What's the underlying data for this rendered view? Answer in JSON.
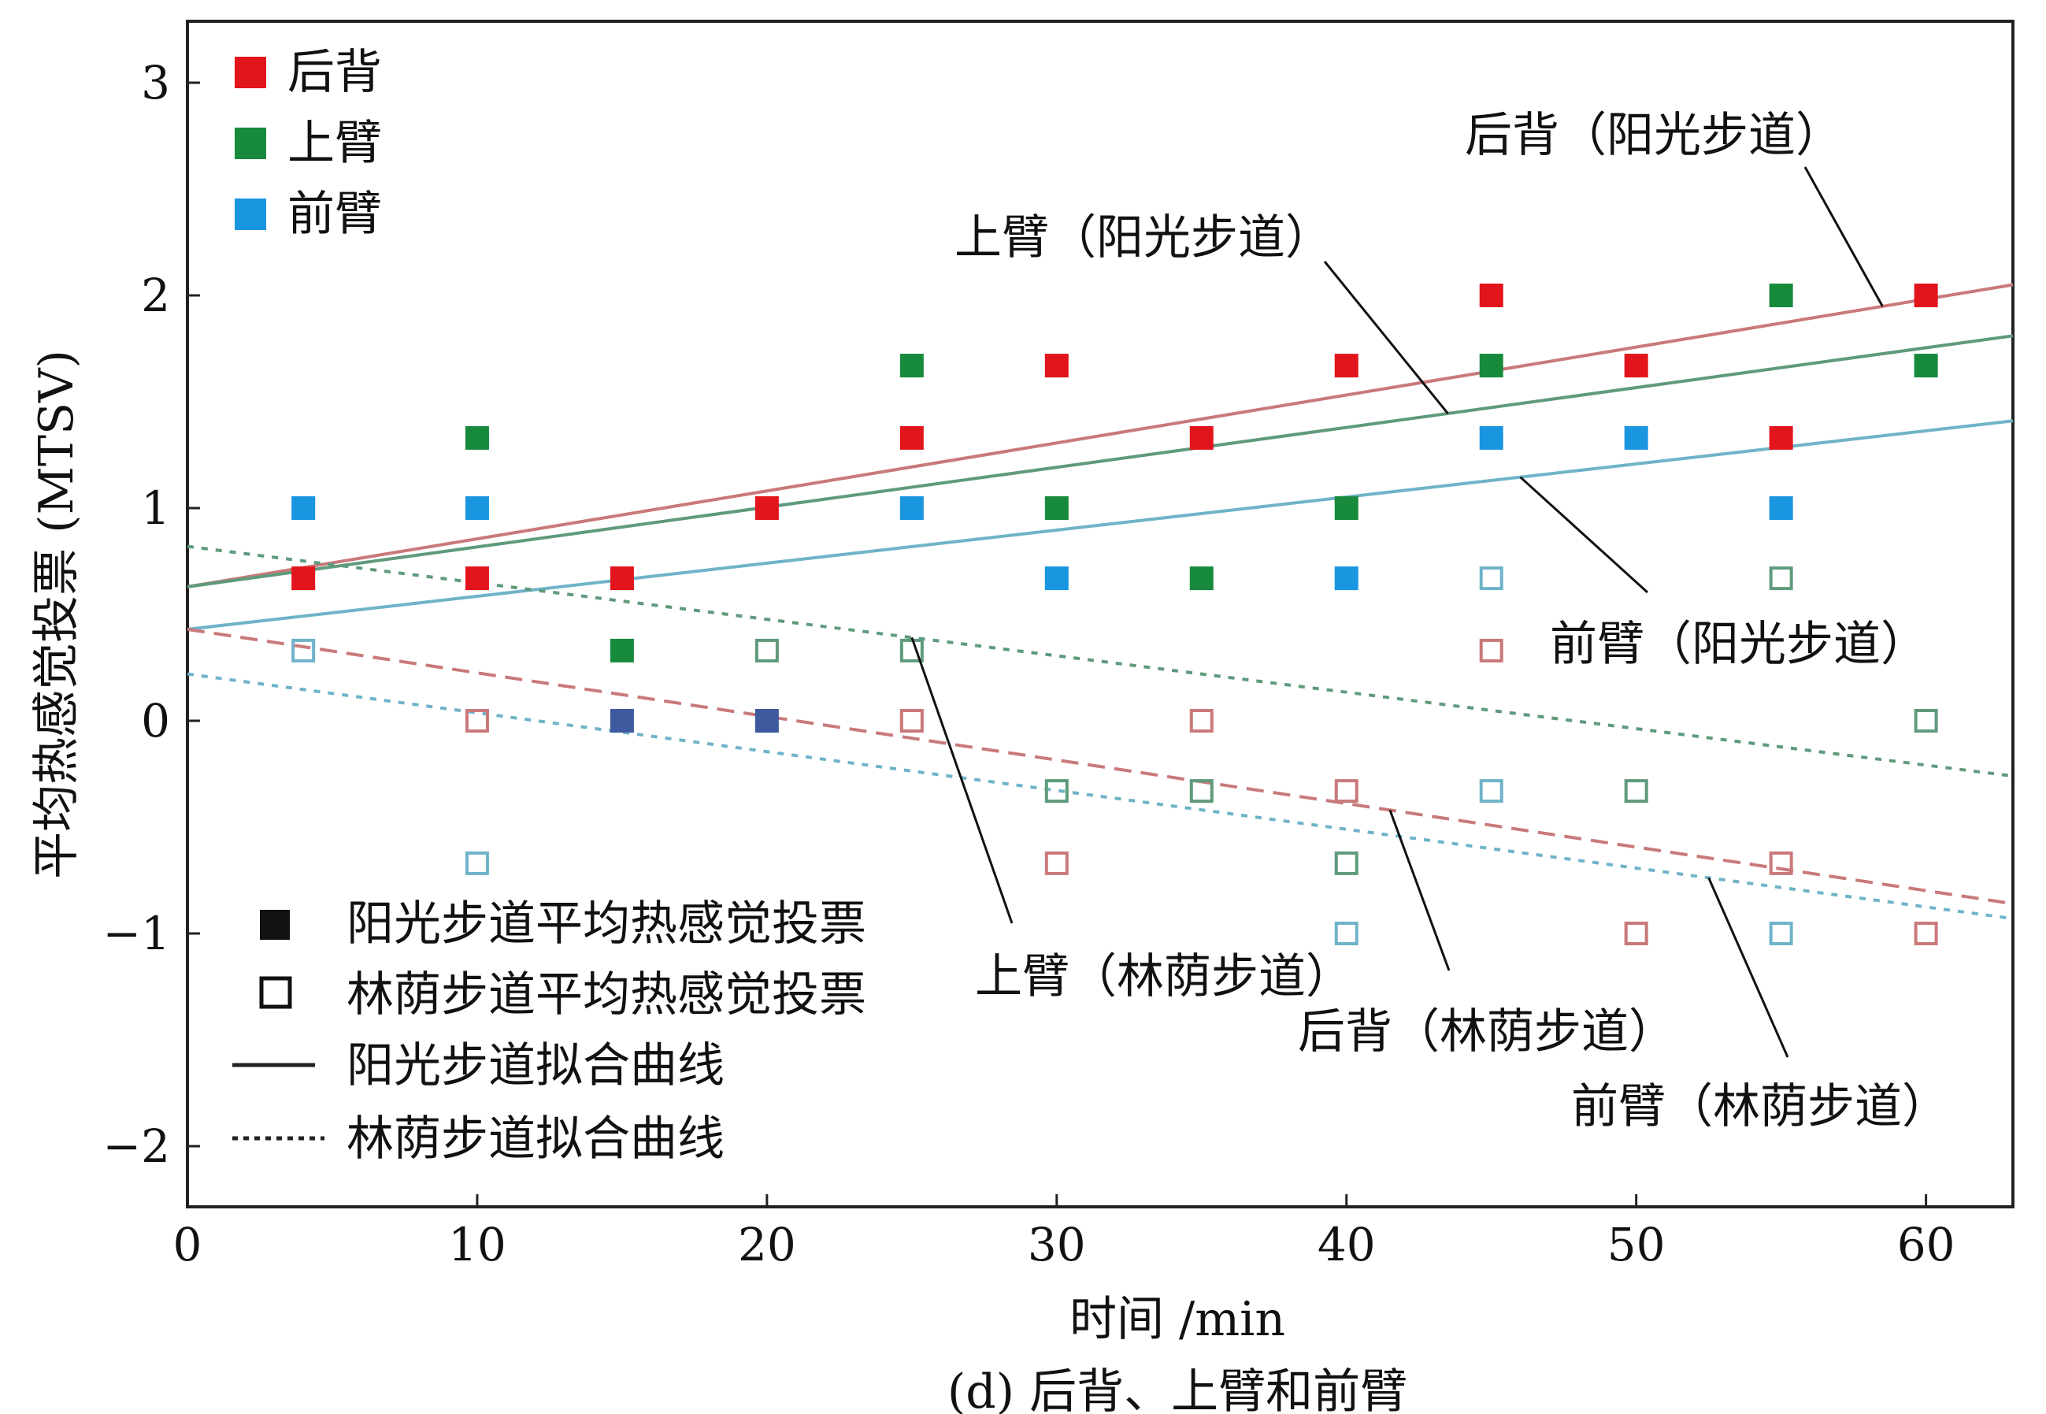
{
  "chart_data": {
    "type": "scatter",
    "xlabel": "时间 /min",
    "ylabel": "平均热感觉投票 (MTSV)",
    "caption": "(d) 后背、上臂和前臂",
    "xlim": [
      0,
      63
    ],
    "ylim": [
      -2.3,
      3.3
    ],
    "xticks": [
      0,
      10,
      20,
      30,
      40,
      50,
      60
    ],
    "yticks": [
      -2,
      -1,
      0,
      1,
      2,
      3
    ],
    "ytick_labels": [
      "−2",
      "−1",
      "0",
      "1",
      "2",
      "3"
    ],
    "grid": false,
    "colors": {
      "back": "#e2141c",
      "upper_arm": "#178a3c",
      "forearm": "#1a95e0",
      "back_fit": "#c9797a",
      "upper_arm_fit": "#5f9a7c",
      "forearm_fit": "#6fb3c8",
      "overlap": "#3d5a9e"
    },
    "legend_parts": {
      "position": "top-left",
      "items": [
        {
          "label": "后背",
          "color": "#e2141c"
        },
        {
          "label": "上臂",
          "color": "#178a3c"
        },
        {
          "label": "前臂",
          "color": "#1a95e0"
        }
      ]
    },
    "legend_types": {
      "position": "bottom-left",
      "items": [
        {
          "label": "阳光步道平均热感觉投票",
          "symbol": "filled-square"
        },
        {
          "label": "林荫步道平均热感觉投票",
          "symbol": "open-square"
        },
        {
          "label": "阳光步道拟合曲线",
          "symbol": "solid-line"
        },
        {
          "label": "林荫步道拟合曲线",
          "symbol": "dotted-line"
        }
      ]
    },
    "series": [
      {
        "part": "back",
        "condition": "sunny",
        "marker": "filled",
        "x": [
          4,
          10,
          15,
          20,
          25,
          30,
          35,
          40,
          45,
          50,
          55,
          60
        ],
        "y": [
          0.67,
          0.67,
          0.67,
          1.0,
          1.33,
          1.67,
          1.33,
          1.67,
          2.0,
          1.67,
          1.33,
          2.0
        ]
      },
      {
        "part": "upper_arm",
        "condition": "sunny",
        "marker": "filled",
        "x": [
          10,
          15,
          25,
          30,
          35,
          40,
          45,
          55,
          60
        ],
        "y": [
          1.33,
          0.33,
          1.67,
          1.0,
          0.67,
          1.0,
          1.67,
          2.0,
          1.67
        ]
      },
      {
        "part": "forearm",
        "condition": "sunny",
        "marker": "filled",
        "x": [
          4,
          10,
          25,
          30,
          40,
          45,
          50,
          55
        ],
        "y": [
          1.0,
          1.0,
          1.0,
          0.67,
          0.67,
          1.33,
          1.33,
          1.0
        ]
      },
      {
        "part": "overlap",
        "condition": "sunny",
        "marker": "filled",
        "x": [
          15,
          20
        ],
        "y": [
          0.0,
          0.0
        ]
      },
      {
        "part": "back",
        "condition": "shaded",
        "marker": "open",
        "x": [
          10,
          25,
          30,
          35,
          40,
          45,
          50,
          55,
          60
        ],
        "y": [
          0.0,
          0.0,
          -0.67,
          0.0,
          -0.33,
          0.33,
          -1.0,
          -0.67,
          -1.0
        ]
      },
      {
        "part": "upper_arm",
        "condition": "shaded",
        "marker": "open",
        "x": [
          20,
          25,
          30,
          35,
          40,
          50,
          55,
          60
        ],
        "y": [
          0.33,
          0.33,
          -0.33,
          -0.33,
          -0.67,
          -0.33,
          0.67,
          0.0
        ]
      },
      {
        "part": "forearm",
        "condition": "shaded",
        "marker": "open",
        "x": [
          4,
          10,
          45,
          45,
          40,
          55
        ],
        "y": [
          0.33,
          -0.67,
          0.67,
          -0.33,
          -1.0,
          -1.0
        ]
      }
    ],
    "fits": [
      {
        "part": "back",
        "condition": "sunny",
        "style": "solid",
        "x": [
          0,
          63
        ],
        "y": [
          0.63,
          2.05
        ]
      },
      {
        "part": "upper_arm",
        "condition": "sunny",
        "style": "solid",
        "x": [
          0,
          63
        ],
        "y": [
          0.63,
          1.81
        ]
      },
      {
        "part": "forearm",
        "condition": "sunny",
        "style": "solid",
        "x": [
          0,
          63
        ],
        "y": [
          0.43,
          1.41
        ]
      },
      {
        "part": "upper_arm",
        "condition": "shaded",
        "style": "dotted",
        "x": [
          0,
          63
        ],
        "y": [
          0.82,
          -0.26
        ]
      },
      {
        "part": "back",
        "condition": "shaded",
        "style": "dashed",
        "x": [
          0,
          63
        ],
        "y": [
          0.43,
          -0.86
        ]
      },
      {
        "part": "forearm",
        "condition": "shaded",
        "style": "dotted",
        "x": [
          0,
          63
        ],
        "y": [
          0.22,
          -0.93
        ]
      }
    ],
    "annotations": [
      {
        "text": "后背（阳光步道）"
      },
      {
        "text": "上臂（阳光步道）"
      },
      {
        "text": "前臂（阳光步道）"
      },
      {
        "text": "上臂（林荫步道）"
      },
      {
        "text": "后背（林荫步道）"
      },
      {
        "text": "前臂（林荫步道）"
      }
    ]
  }
}
